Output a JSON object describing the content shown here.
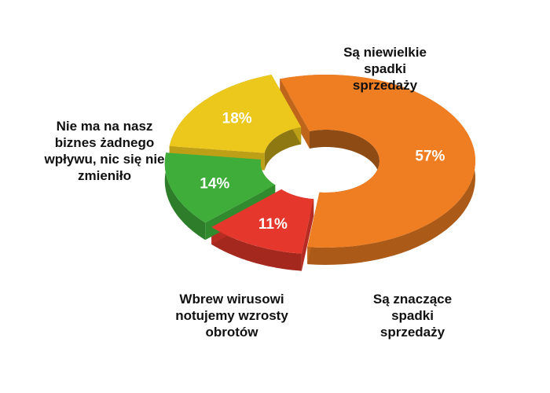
{
  "chart_data": {
    "type": "pie",
    "variant": "3d-donut",
    "slices": [
      {
        "label": "Są niewielkie spadki sprzedaży",
        "value": 57,
        "value_label": "57%",
        "color": "#ef7d22"
      },
      {
        "label": "Są znaczące spadki sprzedaży",
        "value": 11,
        "value_label": "11%",
        "color": "#e5372b"
      },
      {
        "label": "Wbrew wirusowi notujemy wzrosty obrotów",
        "value": 14,
        "value_label": "14%",
        "color": "#3fad3a"
      },
      {
        "label": "Nie ma na nasz biznes żadnego wpływu, nic się nie zmieniło",
        "value": 18,
        "value_label": "18%",
        "color": "#ecc81c"
      }
    ]
  },
  "labels": {
    "small_declines": "Są niewielkie\nspadki\nsprzedaży",
    "significant_declines": "Są znaczące\nspadki\nsprzedaży",
    "growth": "Wbrew wirusowi\nnotujemy wzrosty\nobrotów",
    "no_impact": "Nie ma na nasz\nbiznes żadnego\nwpływu, nic się nie\nzmieniło"
  }
}
